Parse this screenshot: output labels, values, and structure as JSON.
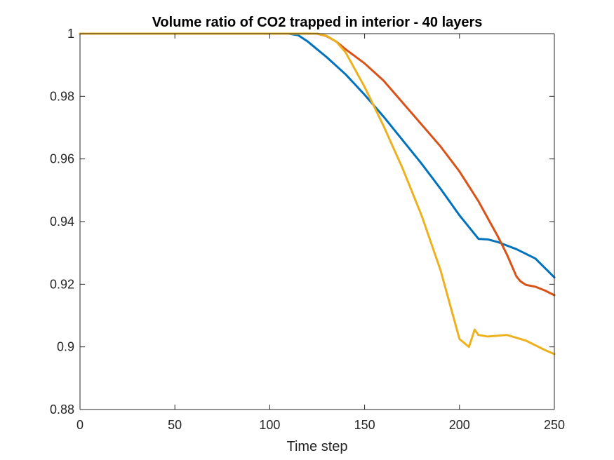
{
  "chart_data": {
    "type": "line",
    "title": "Volume ratio of CO2 trapped in interior - 40 layers",
    "xlabel": "Time step",
    "ylabel": "",
    "xlim": [
      0,
      250
    ],
    "ylim": [
      0.88,
      1.0
    ],
    "xticks": [
      0,
      50,
      100,
      150,
      200,
      250
    ],
    "xtick_labels": [
      "0",
      "50",
      "100",
      "150",
      "200",
      "250"
    ],
    "yticks": [
      0.88,
      0.9,
      0.92,
      0.94,
      0.96,
      0.98,
      1.0
    ],
    "ytick_labels": [
      "0.88",
      "0.9",
      "0.92",
      "0.94",
      "0.96",
      "0.98",
      "1"
    ],
    "grid": false,
    "legend": "none",
    "series": [
      {
        "color": "#0072BD",
        "x": [
          0,
          110,
          115,
          120,
          130,
          140,
          150,
          160,
          170,
          180,
          190,
          200,
          210,
          215,
          220,
          230,
          240,
          250
        ],
        "y": [
          1.0,
          1.0,
          0.9995,
          0.9975,
          0.9925,
          0.987,
          0.9805,
          0.9735,
          0.966,
          0.9585,
          0.9505,
          0.942,
          0.9345,
          0.9343,
          0.9335,
          0.9312,
          0.9282,
          0.9222
        ]
      },
      {
        "color": "#D95319",
        "x": [
          0,
          125,
          130,
          135,
          140,
          150,
          160,
          170,
          180,
          190,
          200,
          210,
          220,
          225,
          230,
          232,
          235,
          240,
          245,
          250
        ],
        "y": [
          1.0,
          1.0,
          0.9992,
          0.9975,
          0.995,
          0.9905,
          0.985,
          0.978,
          0.971,
          0.964,
          0.956,
          0.9465,
          0.9355,
          0.9295,
          0.9225,
          0.921,
          0.9198,
          0.9192,
          0.918,
          0.9165
        ]
      },
      {
        "color": "#EDB120",
        "x": [
          0,
          125,
          130,
          135,
          140,
          150,
          160,
          170,
          180,
          190,
          200,
          205,
          208,
          210,
          215,
          225,
          235,
          245,
          250
        ],
        "y": [
          1.0,
          1.0,
          0.9993,
          0.9975,
          0.994,
          0.983,
          0.9705,
          0.957,
          0.942,
          0.9245,
          0.9025,
          0.9,
          0.9055,
          0.9038,
          0.9033,
          0.9038,
          0.902,
          0.899,
          0.8977
        ]
      }
    ]
  }
}
